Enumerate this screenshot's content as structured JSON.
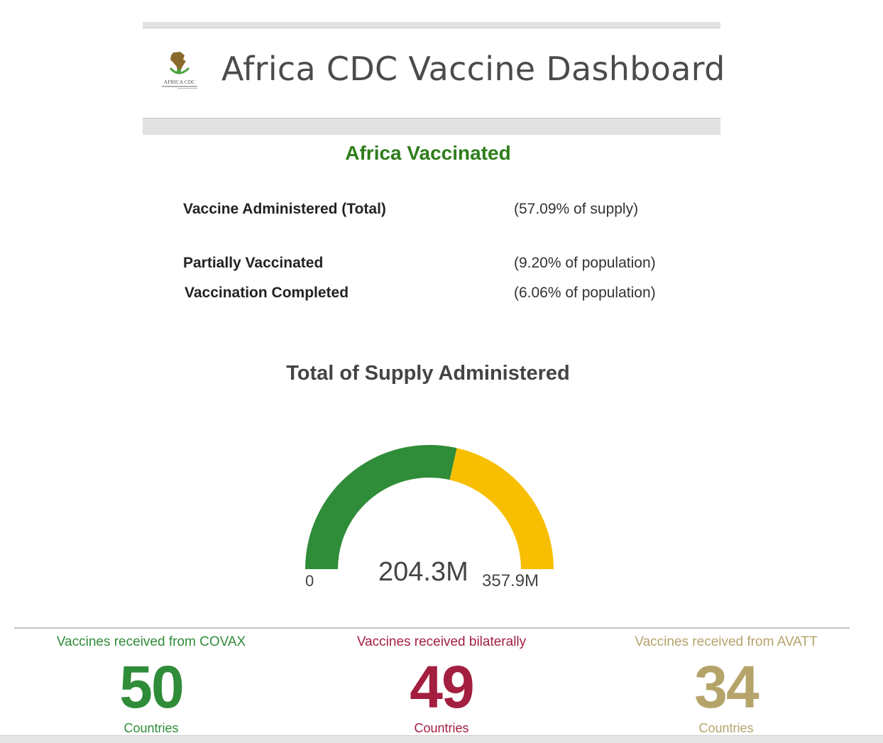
{
  "header": {
    "title": "Africa CDC Vaccine Dashboard",
    "logo_text": "AFRICA CDC"
  },
  "section": {
    "title": "Africa Vaccinated",
    "stats": [
      {
        "label": "Vaccine Administered (Total)",
        "value": "(57.09% of supply)"
      },
      {
        "label": "Partially Vaccinated",
        "value": "(9.20% of population)"
      },
      {
        "label": "Vaccination Completed",
        "value": "(6.06% of population)"
      }
    ]
  },
  "gauge": {
    "title": "Total of Supply Administered",
    "min_label": "0",
    "value_label": "204.3M",
    "max_label": "357.9M",
    "value": 204.3,
    "max": 357.9,
    "colors": {
      "filled": "#2f8c38",
      "remaining": "#f7bf00"
    }
  },
  "indicators": [
    {
      "title": "Vaccines received from COVAX",
      "value": "50",
      "unit": "Countries",
      "color": "#2f8c38"
    },
    {
      "title": "Vaccines received bilaterally",
      "value": "49",
      "unit": "Countries",
      "color": "#a31e3f"
    },
    {
      "title": "Vaccines received from AVATT",
      "value": "34",
      "unit": "Countries",
      "color": "#b5a46a"
    }
  ]
}
